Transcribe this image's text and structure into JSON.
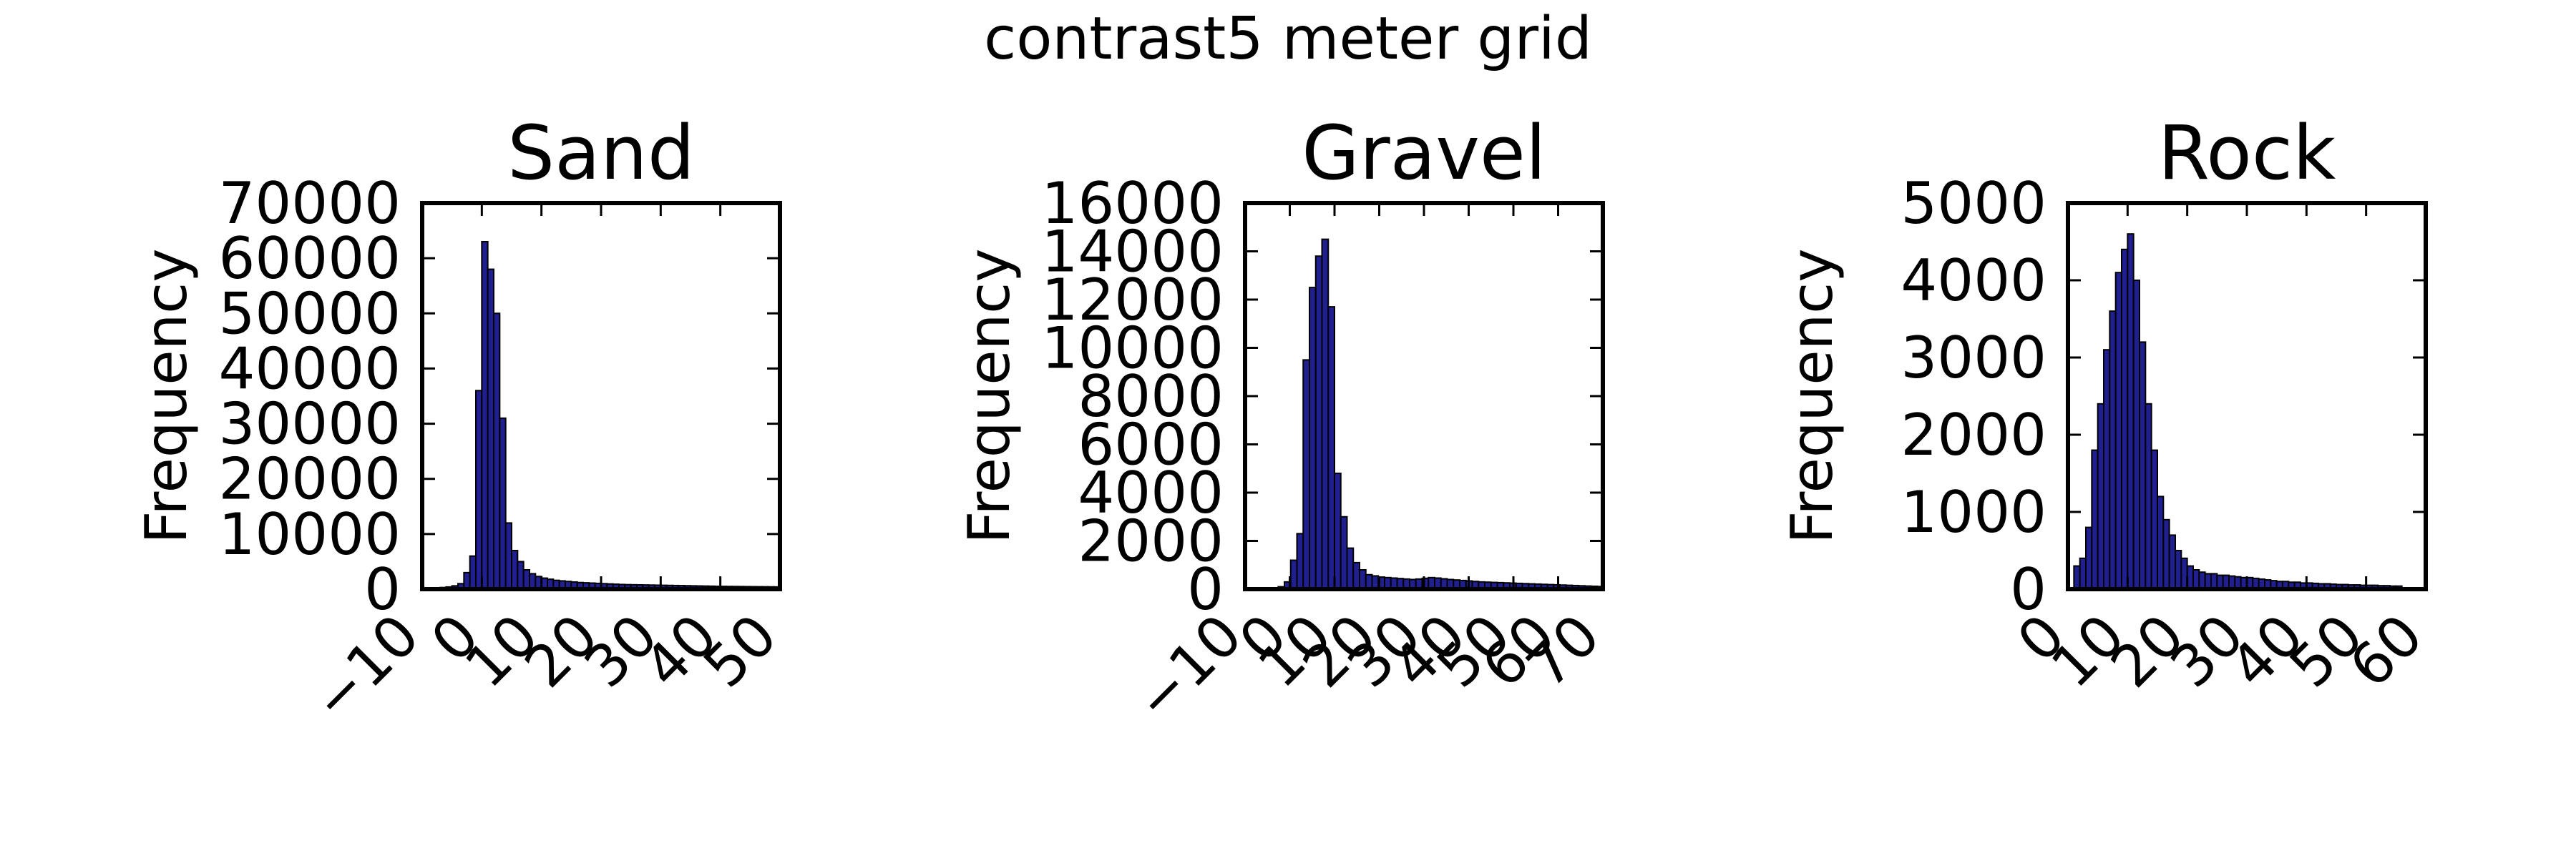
{
  "figure": {
    "title": "contrast5 meter grid"
  },
  "chart_data": [
    {
      "type": "bar",
      "title": "Sand",
      "xlabel": "",
      "ylabel": "Frequency",
      "xlim": [
        -10,
        50
      ],
      "ylim": [
        0,
        70000
      ],
      "xticks": [
        -10,
        0,
        10,
        20,
        30,
        40,
        50
      ],
      "xtick_labels": [
        "−10",
        "0",
        "10",
        "20",
        "30",
        "40",
        "50"
      ],
      "yticks": [
        0,
        10000,
        20000,
        30000,
        40000,
        50000,
        60000,
        70000
      ],
      "bar_color": "#1f1f8f",
      "bin_width": 1,
      "bins_start": [
        -10,
        -9,
        -8,
        -7,
        -6,
        -5,
        -4,
        -3,
        -2,
        -1,
        0,
        1,
        2,
        3,
        4,
        5,
        6,
        7,
        8,
        9,
        10,
        11,
        12,
        13,
        14,
        15,
        16,
        17,
        18,
        19,
        20,
        21,
        22,
        23,
        24,
        25,
        26,
        27,
        28,
        29,
        30,
        31,
        32,
        33,
        34,
        35,
        36,
        37,
        38,
        39,
        40,
        41,
        42,
        43,
        44,
        45,
        46,
        47,
        48,
        49
      ],
      "values": [
        100,
        150,
        200,
        300,
        400,
        600,
        1000,
        3000,
        6000,
        36000,
        63000,
        58000,
        50000,
        31000,
        12000,
        7000,
        5000,
        3500,
        2800,
        2300,
        2000,
        1800,
        1600,
        1500,
        1400,
        1300,
        1200,
        1150,
        1100,
        1050,
        1000,
        950,
        900,
        850,
        820,
        800,
        780,
        760,
        740,
        720,
        700,
        680,
        660,
        640,
        620,
        600,
        580,
        560,
        540,
        520,
        500,
        490,
        480,
        470,
        460,
        450,
        440,
        430,
        420,
        410
      ]
    },
    {
      "type": "bar",
      "title": "Gravel",
      "xlabel": "",
      "ylabel": "Frequency",
      "xlim": [
        -10,
        70
      ],
      "ylim": [
        0,
        16000
      ],
      "xticks": [
        -10,
        0,
        10,
        20,
        30,
        40,
        50,
        60,
        70
      ],
      "xtick_labels": [
        "−10",
        "0",
        "10",
        "20",
        "30",
        "40",
        "50",
        "60",
        "70"
      ],
      "yticks": [
        0,
        2000,
        4000,
        6000,
        8000,
        10000,
        12000,
        14000,
        16000
      ],
      "bar_color": "#1f1f8f",
      "bin_width": 1.4,
      "bins_start": [
        -2.6,
        -1.2,
        0.2,
        1.6,
        3,
        4.4,
        5.8,
        7.2,
        8.6,
        10,
        11.4,
        12.8,
        14.2,
        15.6,
        17,
        18.4,
        19.8,
        21.2,
        22.6,
        24,
        25.4,
        26.8,
        28.2,
        29.6,
        31,
        32.4,
        33.8,
        35.2,
        36.6,
        38,
        39.4,
        40.8,
        42.2,
        43.6,
        45,
        46.4,
        47.8,
        49.2,
        50.6,
        52,
        53.4,
        54.8,
        56.2,
        57.6,
        59,
        60.4,
        61.8,
        63.2,
        64.6,
        66,
        67.4,
        68.8
      ],
      "values": [
        100,
        300,
        1200,
        2300,
        9500,
        12500,
        13800,
        14500,
        11700,
        4800,
        3000,
        1700,
        1100,
        800,
        600,
        550,
        500,
        480,
        460,
        440,
        420,
        400,
        420,
        450,
        480,
        460,
        430,
        400,
        380,
        360,
        340,
        320,
        300,
        290,
        280,
        270,
        260,
        250,
        240,
        230,
        220,
        210,
        200,
        190,
        180,
        170,
        160,
        150,
        140,
        130,
        120,
        110
      ]
    },
    {
      "type": "bar",
      "title": "Rock",
      "xlabel": "",
      "ylabel": "Frequency",
      "xlim": [
        0,
        60
      ],
      "ylim": [
        0,
        5000
      ],
      "xticks": [
        0,
        10,
        20,
        30,
        40,
        50,
        60
      ],
      "xtick_labels": [
        "0",
        "10",
        "20",
        "30",
        "40",
        "50",
        "60"
      ],
      "yticks": [
        0,
        1000,
        2000,
        3000,
        4000,
        5000
      ],
      "bar_color": "#1f1f8f",
      "bin_width": 1,
      "bins_start": [
        1,
        2,
        3,
        4,
        5,
        6,
        7,
        8,
        9,
        10,
        11,
        12,
        13,
        14,
        15,
        16,
        17,
        18,
        19,
        20,
        21,
        22,
        23,
        24,
        25,
        26,
        27,
        28,
        29,
        30,
        31,
        32,
        33,
        34,
        35,
        36,
        37,
        38,
        39,
        40,
        41,
        42,
        43,
        44,
        45,
        46,
        47,
        48,
        49,
        50,
        51,
        52,
        53,
        54,
        55
      ],
      "values": [
        300,
        400,
        800,
        1800,
        2400,
        3100,
        3600,
        4100,
        4400,
        4600,
        4000,
        3200,
        2400,
        1800,
        1200,
        900,
        700,
        500,
        400,
        300,
        250,
        220,
        200,
        200,
        180,
        180,
        170,
        160,
        150,
        150,
        140,
        130,
        120,
        110,
        100,
        100,
        90,
        90,
        80,
        80,
        75,
        70,
        70,
        65,
        60,
        60,
        55,
        55,
        50,
        50,
        50,
        45,
        45,
        40,
        40
      ]
    }
  ]
}
